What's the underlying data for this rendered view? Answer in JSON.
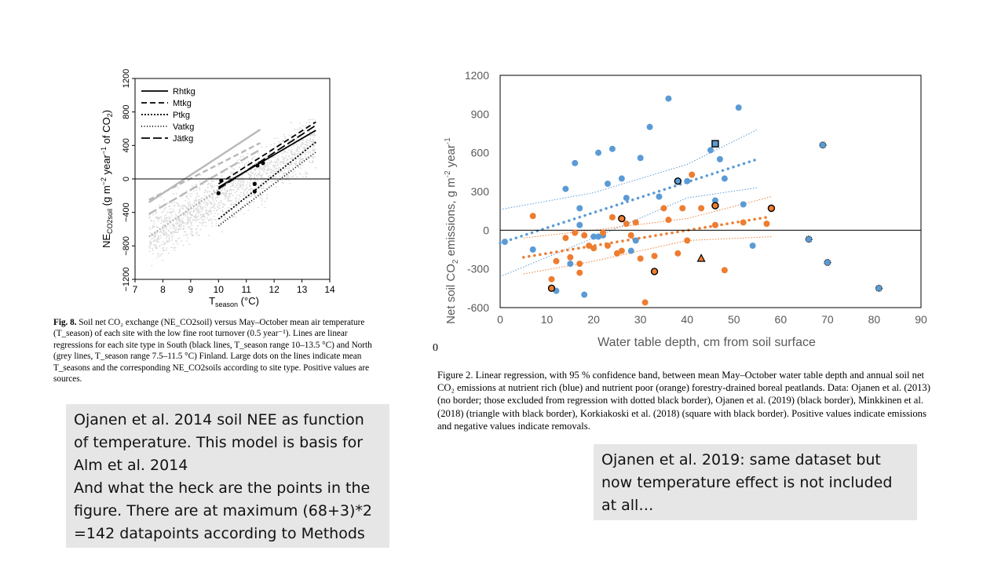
{
  "chart_data": [
    {
      "type": "scatter",
      "xlabel": "T_season (°C)",
      "ylabel": "NE_CO2soil (g m^-2 year^-1 of CO2)",
      "xlim": [
        7,
        14
      ],
      "ylim": [
        -1200,
        1200
      ],
      "xticks": [
        7,
        8,
        9,
        10,
        11,
        12,
        13,
        14
      ],
      "yticks": [
        -1200,
        -800,
        -400,
        0,
        400,
        800,
        1200
      ],
      "x_tick_labels": [
        "7",
        "8",
        "9",
        "10",
        "11",
        "12",
        "13",
        "14"
      ],
      "y_tick_labels": [
        "−1200",
        "−800",
        "−400",
        "0",
        "400",
        "800",
        "1200"
      ],
      "legend_position": "top-left",
      "legend": [
        {
          "name": "Rhtkg",
          "style": "solid"
        },
        {
          "name": "Mtkg",
          "style": "dashed"
        },
        {
          "name": "Ptkg",
          "style": "dotted"
        },
        {
          "name": "Vatkg",
          "style": "dotted-fine"
        },
        {
          "name": "Jätkg",
          "style": "long-dash"
        }
      ],
      "south_lines": [
        {
          "name": "Rhtkg",
          "x": [
            10,
            13.5
          ],
          "y": [
            -100,
            580
          ]
        },
        {
          "name": "Mtkg",
          "x": [
            10,
            13.5
          ],
          "y": [
            -60,
            680
          ]
        },
        {
          "name": "Jätkg",
          "x": [
            10,
            13.5
          ],
          "y": [
            -120,
            640
          ]
        },
        {
          "name": "Ptkg",
          "x": [
            10,
            13.5
          ],
          "y": [
            -480,
            440
          ]
        },
        {
          "name": "Vatkg",
          "x": [
            10,
            13.5
          ],
          "y": [
            -560,
            320
          ]
        }
      ],
      "north_lines": [
        {
          "name": "Rhtkg",
          "x": [
            7.5,
            11.5
          ],
          "y": [
            -280,
            590
          ]
        },
        {
          "name": "Mtkg",
          "x": [
            7.5,
            11.5
          ],
          "y": [
            -250,
            430
          ]
        },
        {
          "name": "Jätkg",
          "x": [
            7.5,
            11.5
          ],
          "y": [
            -420,
            350
          ]
        },
        {
          "name": "Ptkg",
          "x": [
            7.5,
            11.5
          ],
          "y": [
            -690,
            210
          ]
        }
      ],
      "mean_dots": [
        {
          "x": 11.4,
          "y": 160
        },
        {
          "x": 11.6,
          "y": 190
        },
        {
          "x": 11.3,
          "y": -60
        },
        {
          "x": 11.3,
          "y": -150
        },
        {
          "x": 10.1,
          "y": -20
        },
        {
          "x": 10.0,
          "y": -170
        }
      ]
    },
    {
      "type": "scatter",
      "xlabel": "Water table depth, cm from soil surface",
      "ylabel": "Net soil CO2 emissions, g m-2 year-1",
      "xlim": [
        0,
        90
      ],
      "ylim": [
        -600,
        1200
      ],
      "xticks": [
        0,
        10,
        20,
        30,
        40,
        50,
        60,
        70,
        80,
        90
      ],
      "yticks": [
        -600,
        -300,
        0,
        300,
        600,
        900,
        1200
      ],
      "x_tick_labels": [
        "0",
        "10",
        "20",
        "30",
        "40",
        "50",
        "60",
        "70",
        "80",
        "90"
      ],
      "y_tick_labels": [
        "-600",
        "-300",
        "0",
        "300",
        "600",
        "900",
        "1200"
      ],
      "colors": {
        "rich": "#5b9bd5",
        "poor": "#ed7d31"
      },
      "series": [
        {
          "group": "rich",
          "points": [
            [
              1,
              -90
            ],
            [
              7,
              -150
            ],
            [
              12,
              -470
            ],
            [
              14,
              320
            ],
            [
              15,
              -260
            ],
            [
              16,
              520
            ],
            [
              17,
              170
            ],
            [
              17,
              40
            ],
            [
              18,
              -500
            ],
            [
              20,
              -50
            ],
            [
              21,
              600
            ],
            [
              21,
              -50
            ],
            [
              22,
              -40
            ],
            [
              23,
              360
            ],
            [
              24,
              630
            ],
            [
              26,
              400
            ],
            [
              27,
              250
            ],
            [
              28,
              -160
            ],
            [
              29,
              -80
            ],
            [
              30,
              560
            ],
            [
              32,
              800
            ],
            [
              34,
              260
            ],
            [
              36,
              1020
            ],
            [
              40,
              380
            ],
            [
              45,
              620
            ],
            [
              46,
              230
            ],
            [
              47,
              550
            ],
            [
              48,
              400
            ],
            [
              51,
              950
            ],
            [
              52,
              200
            ],
            [
              54,
              -120
            ]
          ],
          "bordered": [
            [
              38,
              380
            ]
          ],
          "square": [
            [
              46,
              670
            ]
          ],
          "excluded": [
            [
              69,
              660
            ],
            [
              66,
              -70
            ],
            [
              70,
              -250
            ],
            [
              81,
              -450
            ]
          ]
        },
        {
          "group": "poor",
          "points": [
            [
              7,
              110
            ],
            [
              11,
              -380
            ],
            [
              12,
              -240
            ],
            [
              14,
              -60
            ],
            [
              15,
              -210
            ],
            [
              16,
              -20
            ],
            [
              17,
              -260
            ],
            [
              17,
              -330
            ],
            [
              18,
              -40
            ],
            [
              19,
              -120
            ],
            [
              20,
              -140
            ],
            [
              22,
              -20
            ],
            [
              23,
              -120
            ],
            [
              24,
              100
            ],
            [
              25,
              -180
            ],
            [
              26,
              -160
            ],
            [
              27,
              50
            ],
            [
              28,
              -40
            ],
            [
              29,
              60
            ],
            [
              30,
              -220
            ],
            [
              31,
              -560
            ],
            [
              33,
              -200
            ],
            [
              35,
              170
            ],
            [
              36,
              80
            ],
            [
              38,
              -180
            ],
            [
              39,
              170
            ],
            [
              40,
              -80
            ],
            [
              41,
              430
            ],
            [
              43,
              170
            ],
            [
              46,
              40
            ],
            [
              48,
              -310
            ],
            [
              52,
              60
            ],
            [
              57,
              50
            ]
          ],
          "bordered": [
            [
              11,
              -450
            ],
            [
              26,
              90
            ],
            [
              33,
              -320
            ],
            [
              46,
              190
            ],
            [
              58,
              170
            ]
          ],
          "triangle": [
            [
              43,
              -220
            ]
          ]
        }
      ],
      "fits": [
        {
          "group": "rich",
          "x": [
            0,
            55
          ],
          "y": [
            -100,
            550
          ]
        },
        {
          "group": "poor",
          "x": [
            5,
            57
          ],
          "y": [
            -210,
            100
          ]
        }
      ],
      "bands": [
        {
          "group": "rich",
          "upper": [
            [
              0,
              160
            ],
            [
              20,
              290
            ],
            [
              40,
              510
            ],
            [
              55,
              780
            ]
          ],
          "lower": [
            [
              0,
              -360
            ],
            [
              20,
              -60
            ],
            [
              40,
              250
            ],
            [
              55,
              330
            ]
          ]
        },
        {
          "group": "poor",
          "upper": [
            [
              5,
              -60
            ],
            [
              20,
              0
            ],
            [
              40,
              90
            ],
            [
              58,
              260
            ]
          ],
          "lower": [
            [
              5,
              -340
            ],
            [
              20,
              -240
            ],
            [
              40,
              -80
            ],
            [
              58,
              -50
            ]
          ]
        }
      ]
    }
  ],
  "captions": {
    "fig8_label": "Fig. 8.",
    "fig8_text": "Soil net CO₂ exchange (NE_CO2soil) versus May–October mean air temperature (T_season) of each site with the low fine root turnover (0.5 year⁻¹). Lines are linear regressions for each site type in South (black lines, T_season range 10–13.5 °C) and North (grey lines, T_season range 7.5–11.5 °C) Finland. Large dots on the lines indicate mean T_seasons and the corresponding NE_CO2soils according to site type. Positive values are sources.",
    "fig2_text": "Figure 2. Linear regression, with 95 % confidence band, between mean May–October water table depth and annual soil net CO₂ emissions at nutrient rich (blue) and nutrient poor (orange) forestry-drained boreal peatlands. Data: Ojanen et al. (2013) (no border; those excluded from regression with dotted black border), Ojanen et al. (2019) (black border), Minkkinen et al. (2018) (triangle with black border), Korkiakoski et al. (2018) (square with black border). Positive values indicate emissions and negative values indicate removals.",
    "zero_mark": "0"
  },
  "notes": {
    "left_lines": [
      "Ojanen et al. 2014 soil NEE as function",
      "of temperature. This model is basis for",
      "Alm et al. 2014",
      "And what the heck are the points in the",
      "figure. There are at maximum (68+3)*2",
      "=142 datapoints according to Methods"
    ],
    "right_lines": [
      "Ojanen et al. 2019: same dataset but",
      "now temperature effect is not included",
      "at all…"
    ]
  }
}
